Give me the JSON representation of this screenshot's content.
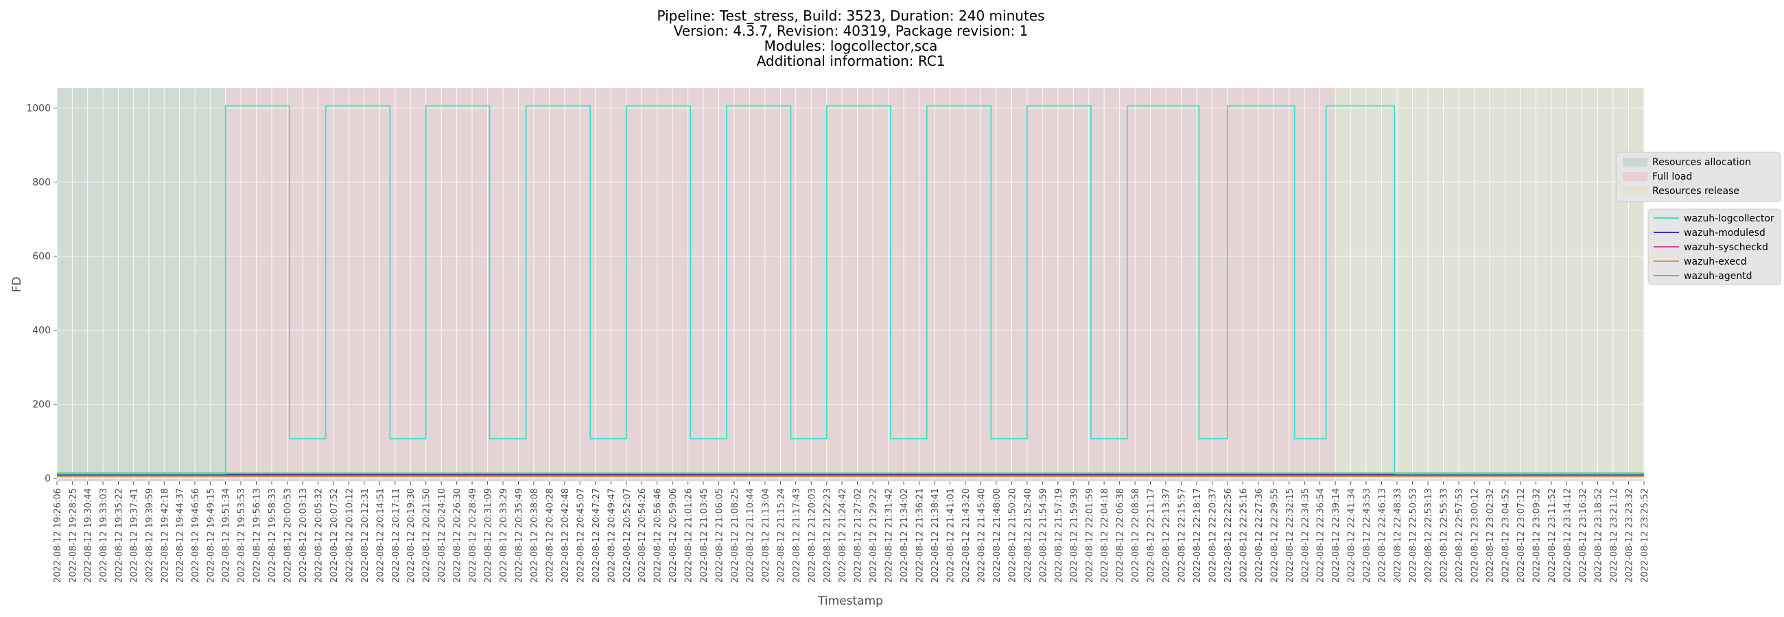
{
  "chart_data": {
    "type": "line",
    "title_lines": [
      "Pipeline: Test_stress, Build: 3523, Duration: 240 minutes",
      "Version: 4.3.7, Revision: 40319, Package revision: 1",
      "Modules: logcollector,sca",
      "Additional information: RC1"
    ],
    "xlabel": "Timestamp",
    "ylabel": "FD",
    "ylim": [
      -8,
      1055
    ],
    "yticks": [
      0,
      200,
      400,
      600,
      800,
      1000
    ],
    "grid": true,
    "legend_placement": "right",
    "x_tick_labels": [
      "2022-08-12 19:26:06",
      "2022-08-12 19:28:25",
      "2022-08-12 19:30:44",
      "2022-08-12 19:33:03",
      "2022-08-12 19:35:22",
      "2022-08-12 19:37:41",
      "2022-08-12 19:39:59",
      "2022-08-12 19:42:18",
      "2022-08-12 19:44:37",
      "2022-08-12 19:46:56",
      "2022-08-12 19:49:15",
      "2022-08-12 19:51:34",
      "2022-08-12 19:53:53",
      "2022-08-12 19:56:13",
      "2022-08-12 19:58:33",
      "2022-08-12 20:00:53",
      "2022-08-12 20:03:13",
      "2022-08-12 20:05:32",
      "2022-08-12 20:07:52",
      "2022-08-12 20:10:12",
      "2022-08-12 20:12:31",
      "2022-08-12 20:14:51",
      "2022-08-12 20:17:11",
      "2022-08-12 20:19:30",
      "2022-08-12 20:21:50",
      "2022-08-12 20:24:10",
      "2022-08-12 20:26:30",
      "2022-08-12 20:28:49",
      "2022-08-12 20:31:09",
      "2022-08-12 20:33:29",
      "2022-08-12 20:35:49",
      "2022-08-12 20:38:08",
      "2022-08-12 20:40:28",
      "2022-08-12 20:42:48",
      "2022-08-12 20:45:07",
      "2022-08-12 20:47:27",
      "2022-08-12 20:49:47",
      "2022-08-12 20:52:07",
      "2022-08-12 20:54:26",
      "2022-08-12 20:56:46",
      "2022-08-12 20:59:06",
      "2022-08-12 21:01:26",
      "2022-08-12 21:03:45",
      "2022-08-12 21:06:05",
      "2022-08-12 21:08:25",
      "2022-08-12 21:10:44",
      "2022-08-12 21:13:04",
      "2022-08-12 21:15:24",
      "2022-08-12 21:17:43",
      "2022-08-12 21:20:03",
      "2022-08-12 21:22:23",
      "2022-08-12 21:24:42",
      "2022-08-12 21:27:02",
      "2022-08-12 21:29:22",
      "2022-08-12 21:31:42",
      "2022-08-12 21:34:02",
      "2022-08-12 21:36:21",
      "2022-08-12 21:38:41",
      "2022-08-12 21:41:01",
      "2022-08-12 21:43:20",
      "2022-08-12 21:45:40",
      "2022-08-12 21:48:00",
      "2022-08-12 21:50:20",
      "2022-08-12 21:52:40",
      "2022-08-12 21:54:59",
      "2022-08-12 21:57:19",
      "2022-08-12 21:59:39",
      "2022-08-12 22:01:59",
      "2022-08-12 22:04:18",
      "2022-08-12 22:06:38",
      "2022-08-12 22:08:58",
      "2022-08-12 22:11:17",
      "2022-08-12 22:13:37",
      "2022-08-12 22:15:57",
      "2022-08-12 22:18:17",
      "2022-08-12 22:20:37",
      "2022-08-12 22:22:56",
      "2022-08-12 22:25:16",
      "2022-08-12 22:27:36",
      "2022-08-12 22:29:55",
      "2022-08-12 22:32:15",
      "2022-08-12 22:34:35",
      "2022-08-12 22:36:54",
      "2022-08-12 22:39:14",
      "2022-08-12 22:41:34",
      "2022-08-12 22:43:53",
      "2022-08-12 22:46:13",
      "2022-08-12 22:48:33",
      "2022-08-12 22:50:53",
      "2022-08-12 22:53:13",
      "2022-08-12 22:55:33",
      "2022-08-12 22:57:53",
      "2022-08-12 23:00:12",
      "2022-08-12 23:02:32",
      "2022-08-12 23:04:52",
      "2022-08-12 23:07:12",
      "2022-08-12 23:09:32",
      "2022-08-12 23:11:52",
      "2022-08-12 23:14:12",
      "2022-08-12 23:16:32",
      "2022-08-12 23:18:52",
      "2022-08-12 23:21:12",
      "2022-08-12 23:23:32",
      "2022-08-12 23:25:52"
    ],
    "phases": [
      {
        "name": "Resources allocation",
        "start": "2022-08-12 19:26:06",
        "end": "2022-08-12 19:51:34",
        "color": "#9dbfa7"
      },
      {
        "name": "Full load",
        "start": "2022-08-12 19:51:34",
        "end": "2022-08-12 22:39:14",
        "color": "#e7a8ab"
      },
      {
        "name": "Resources release",
        "start": "2022-08-12 22:39:14",
        "end": "2022-08-12 23:25:52",
        "color": "#d9dcaf"
      }
    ],
    "series": [
      {
        "name": "wazuh-logcollector",
        "color": "#40e0d0",
        "step_points": [
          [
            "2022-08-12 19:26:06",
            12
          ],
          [
            "2022-08-12 19:51:34",
            12
          ],
          [
            "2022-08-12 19:51:34",
            1006
          ],
          [
            "2022-08-12 20:01:14",
            1006
          ],
          [
            "2022-08-12 20:01:14",
            107
          ],
          [
            "2022-08-12 20:06:42",
            107
          ],
          [
            "2022-08-12 20:06:42",
            1006
          ],
          [
            "2022-08-12 20:16:24",
            1006
          ],
          [
            "2022-08-12 20:16:24",
            107
          ],
          [
            "2022-08-12 20:21:50",
            107
          ],
          [
            "2022-08-12 20:21:50",
            1006
          ],
          [
            "2022-08-12 20:31:28",
            1006
          ],
          [
            "2022-08-12 20:31:28",
            107
          ],
          [
            "2022-08-12 20:36:58",
            107
          ],
          [
            "2022-08-12 20:36:58",
            1006
          ],
          [
            "2022-08-12 20:46:40",
            1006
          ],
          [
            "2022-08-12 20:46:40",
            107
          ],
          [
            "2022-08-12 20:52:07",
            107
          ],
          [
            "2022-08-12 20:52:07",
            1006
          ],
          [
            "2022-08-12 21:01:47",
            1006
          ],
          [
            "2022-08-12 21:01:47",
            107
          ],
          [
            "2022-08-12 21:07:16",
            107
          ],
          [
            "2022-08-12 21:07:16",
            1006
          ],
          [
            "2022-08-12 21:16:58",
            1006
          ],
          [
            "2022-08-12 21:16:58",
            107
          ],
          [
            "2022-08-12 21:22:23",
            107
          ],
          [
            "2022-08-12 21:22:23",
            1006
          ],
          [
            "2022-08-12 21:32:03",
            1006
          ],
          [
            "2022-08-12 21:32:03",
            107
          ],
          [
            "2022-08-12 21:37:31",
            107
          ],
          [
            "2022-08-12 21:37:31",
            1006
          ],
          [
            "2022-08-12 21:47:13",
            1006
          ],
          [
            "2022-08-12 21:47:13",
            107
          ],
          [
            "2022-08-12 21:52:40",
            107
          ],
          [
            "2022-08-12 21:52:40",
            1006
          ],
          [
            "2022-08-12 22:02:19",
            1006
          ],
          [
            "2022-08-12 22:02:19",
            107
          ],
          [
            "2022-08-12 22:07:48",
            107
          ],
          [
            "2022-08-12 22:07:48",
            1006
          ],
          [
            "2022-08-12 22:18:38",
            1006
          ],
          [
            "2022-08-12 22:18:38",
            107
          ],
          [
            "2022-08-12 22:22:56",
            107
          ],
          [
            "2022-08-12 22:22:56",
            1006
          ],
          [
            "2022-08-12 22:33:04",
            1006
          ],
          [
            "2022-08-12 22:33:04",
            107
          ],
          [
            "2022-08-12 22:37:50",
            107
          ],
          [
            "2022-08-12 22:37:50",
            1006
          ],
          [
            "2022-08-12 22:48:10",
            1006
          ],
          [
            "2022-08-12 22:48:10",
            12
          ],
          [
            "2022-08-12 23:25:52",
            12
          ]
        ]
      },
      {
        "name": "wazuh-modulesd",
        "color": "#3b2fc9",
        "step_points": [
          [
            "2022-08-12 19:26:06",
            10
          ],
          [
            "2022-08-12 23:25:52",
            10
          ]
        ]
      },
      {
        "name": "wazuh-syscheckd",
        "color": "#c8479b",
        "step_points": [
          [
            "2022-08-12 19:26:06",
            8
          ],
          [
            "2022-08-12 23:25:52",
            8
          ]
        ]
      },
      {
        "name": "wazuh-execd",
        "color": "#e3953a",
        "step_points": [
          [
            "2022-08-12 19:26:06",
            5
          ],
          [
            "2022-08-12 23:25:52",
            5
          ]
        ]
      },
      {
        "name": "wazuh-agentd",
        "color": "#5ccf47",
        "step_points": [
          [
            "2022-08-12 19:26:06",
            14
          ],
          [
            "2022-08-12 23:25:52",
            14
          ]
        ]
      }
    ]
  }
}
